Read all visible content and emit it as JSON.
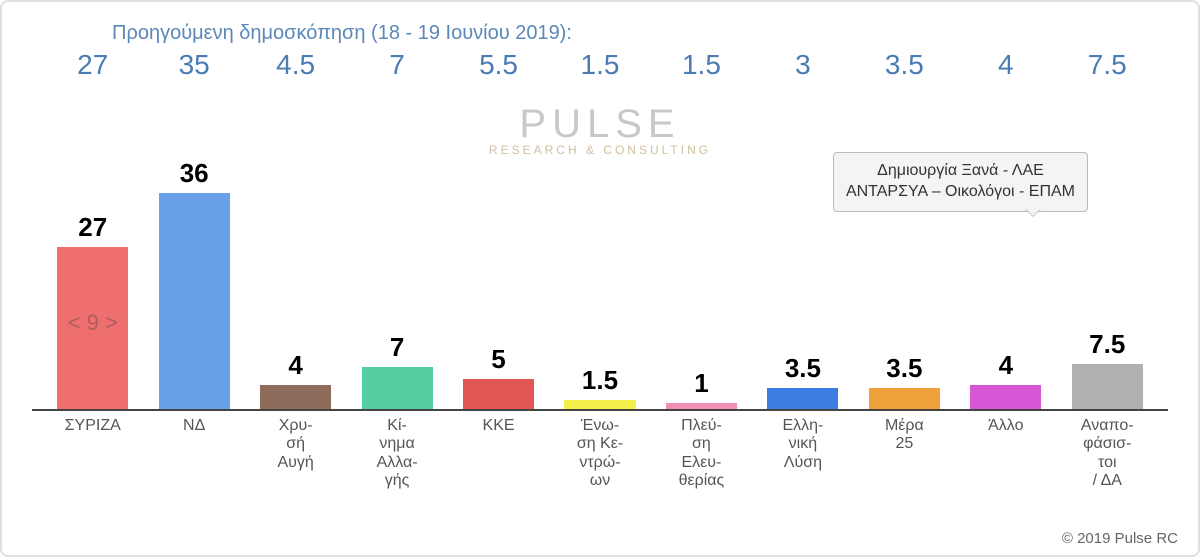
{
  "previous_poll": {
    "label": "Προηγούμενη δημοσκόπηση (18 - 19 Ιουνίου 2019):",
    "label_color": "#5b88b8",
    "value_color": "#4a7bb5",
    "value_fontsize": 28
  },
  "diff_badge": {
    "text": "< 9 >",
    "color": "#b05c5c",
    "fontsize": 22
  },
  "watermark": {
    "line1": "PULSE",
    "line2": "RESEARCH & CONSULTING",
    "color": "#c8c8c8"
  },
  "tooltip": {
    "line1": "Δημιουργία Ξανά - ΛΑΕ",
    "line2": "ΑΝΤΑΡΣΥΑ – Οικολόγοι - ΕΠΑΜ",
    "bg": "#f4f4f4",
    "border": "#bbbbbb"
  },
  "chart": {
    "type": "bar",
    "max_value": 40,
    "value_fontsize": 26,
    "value_fontweight": "bold",
    "value_color": "#000000",
    "label_fontsize": 16,
    "label_color": "#555555",
    "baseline_color": "#444444",
    "bar_width_pct": 70,
    "bars": [
      {
        "name": "ΣΥΡΙΖΑ",
        "value": 27,
        "prev": 27,
        "color": "#ef6e6e"
      },
      {
        "name": "ΝΔ",
        "value": 36,
        "prev": 35,
        "color": "#6aa0e8"
      },
      {
        "name": "Χρυ-\nσή\nΑυγή",
        "value": 4,
        "prev": 4.5,
        "color": "#8e6b5a"
      },
      {
        "name": "Κί-\nνημα\nΑλλα-\nγής",
        "value": 7,
        "prev": 7,
        "color": "#55cfa2"
      },
      {
        "name": "ΚΚΕ",
        "value": 5,
        "prev": 5.5,
        "color": "#e15555"
      },
      {
        "name": "Ένω-\nση Κε-\nντρώ-\nων",
        "value": 1.5,
        "prev": 1.5,
        "color": "#f4f04a"
      },
      {
        "name": "Πλεύ-\nση\nΕλευ-\nθερίας",
        "value": 1,
        "prev": 1.5,
        "color": "#ef8fb4"
      },
      {
        "name": "Ελλη-\nνική\nΛύση",
        "value": 3.5,
        "prev": 3,
        "color": "#3b7de0"
      },
      {
        "name": "Μέρα\n25",
        "value": 3.5,
        "prev": 3.5,
        "color": "#f0a13c"
      },
      {
        "name": "Άλλο",
        "value": 4,
        "prev": 4,
        "color": "#d656d6"
      },
      {
        "name": "Αναπο-\nφάσισ-\nτοι\n/ ΔΑ",
        "value": 7.5,
        "prev": 7.5,
        "color": "#b0b0b0"
      }
    ]
  },
  "copyright": "© 2019 Pulse RC"
}
